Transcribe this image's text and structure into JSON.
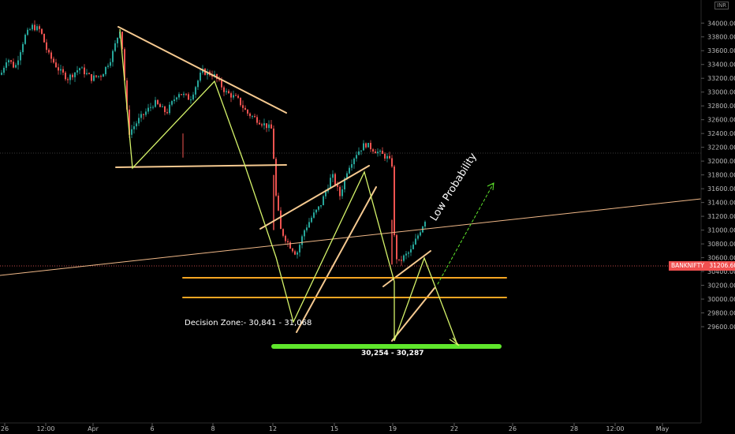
{
  "currency": "INR",
  "symbol_tag": {
    "name": "BANKNIFTY",
    "price": "31206.60"
  },
  "annotations": {
    "decision_zone": "Decision Zone:- 30,841 - 31,068",
    "target_zone": "30,254 - 30,287",
    "low_probability": "Low Probability"
  },
  "colors": {
    "background": "#000000",
    "candle_up": "#26a69a",
    "candle_down": "#ef5350",
    "pattern_line": "#f5c990",
    "zigzag": "#d5f36a",
    "support_band": "#f5a623",
    "target_bar": "#5fe62c",
    "trend_line": "#f0b888",
    "price_tag": "#f05050"
  },
  "chart_data": {
    "type": "candlestick",
    "y_unit": "INR",
    "ylim": [
      29400,
      34200
    ],
    "y_ticks": [
      "34000.00",
      "33800.00",
      "33600.00",
      "33400.00",
      "33200.00",
      "33000.00",
      "32800.00",
      "32600.00",
      "32400.00",
      "32200.00",
      "32000.00",
      "31800.00",
      "31600.00",
      "31400.00",
      "31200.00",
      "31000.00",
      "30800.00",
      "30600.00",
      "30400.00",
      "30200.00",
      "30000.00",
      "29800.00",
      "29600.00"
    ],
    "x_ticks": [
      "26",
      "12:00",
      "Apr",
      "6",
      "8",
      "12",
      "15",
      "19",
      "22",
      "26",
      "28",
      "12:00",
      "May"
    ],
    "levels": {
      "decision_zone_high": 31068,
      "decision_zone_low": 30841,
      "target": 30270
    },
    "current_price": 31206.6,
    "series": [
      {
        "name": "BANKNIFTY",
        "waypoints_hours": [
          0,
          15,
          30,
          45,
          60,
          72,
          85,
          100,
          115,
          130,
          140,
          152,
          165,
          180,
          192,
          205,
          220,
          235,
          250,
          262,
          275,
          290,
          305,
          320,
          335,
          345
        ],
        "waypoints_price": [
          33300,
          33500,
          33950,
          33750,
          33300,
          33450,
          33900,
          32450,
          32700,
          33200,
          32600,
          33150,
          32500,
          31700,
          30850,
          30650,
          31400,
          32200,
          32100,
          30500,
          30700,
          31050,
          null,
          null,
          null,
          null
        ]
      }
    ]
  }
}
